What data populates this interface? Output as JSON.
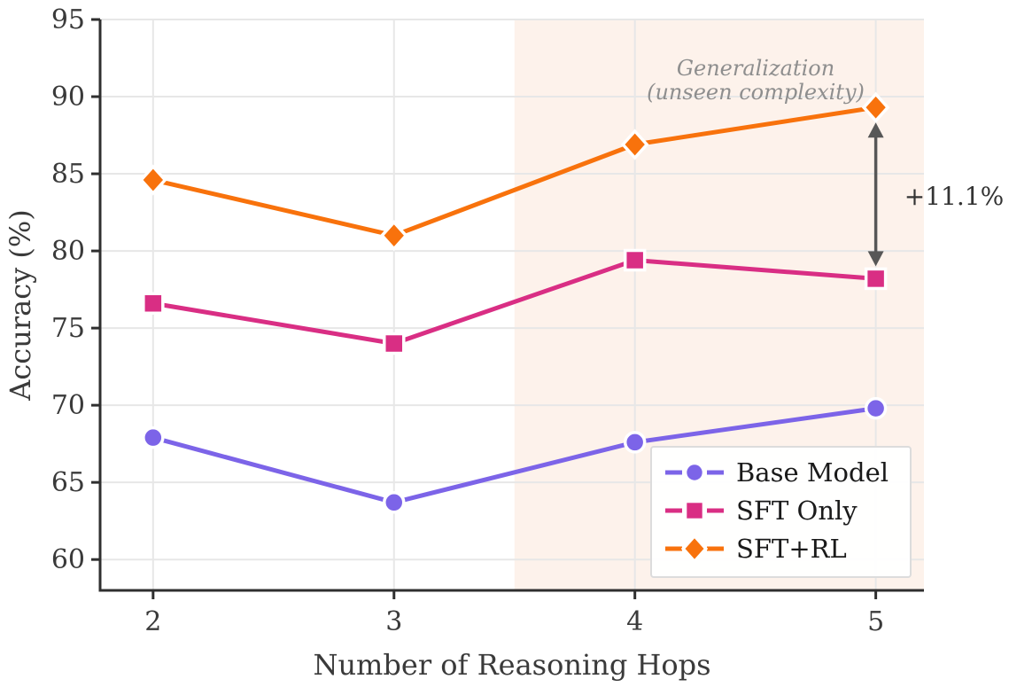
{
  "chart_data": {
    "type": "line",
    "title": "",
    "xlabel": "Number of Reasoning Hops",
    "ylabel": "Accuracy (%)",
    "x": [
      2,
      3,
      4,
      5
    ],
    "xticks": [
      2,
      3,
      4,
      5
    ],
    "yticks": [
      60,
      65,
      70,
      75,
      80,
      85,
      90,
      95
    ],
    "xlim": [
      1.78,
      5.2
    ],
    "ylim": [
      58,
      95
    ],
    "grid": true,
    "legend_position": "lower right",
    "series": [
      {
        "name": "Base Model",
        "marker": "circle",
        "color": "#7C64E8",
        "values": [
          67.9,
          63.7,
          67.6,
          69.8
        ]
      },
      {
        "name": "SFT Only",
        "marker": "square",
        "color": "#D92E84",
        "values": [
          76.6,
          74.0,
          79.4,
          78.2
        ]
      },
      {
        "name": "SFT+RL",
        "marker": "diamond",
        "color": "#F8720C",
        "values": [
          84.6,
          81.0,
          86.9,
          89.3
        ]
      }
    ],
    "shaded_region": {
      "x_from": 3.5,
      "x_to": 5.2,
      "fill": "#FDF2EB",
      "label": [
        "Generalization",
        "(unseen complexity)"
      ],
      "label_color": "#8E8E8E"
    },
    "annotations": [
      {
        "type": "double-arrow-label",
        "text": "+11.1%",
        "x": 5,
        "y_from": 78.2,
        "y_to": 89.3,
        "arrow_color": "#575757",
        "text_color": "#333333"
      }
    ],
    "axis_colors": {
      "spine": "#2F2F2F",
      "grid": "#E7E7E7",
      "tick_label": "#3A3A3A",
      "legend_border": "#DCDCDC",
      "legend_text": "#1A1A1A"
    }
  }
}
